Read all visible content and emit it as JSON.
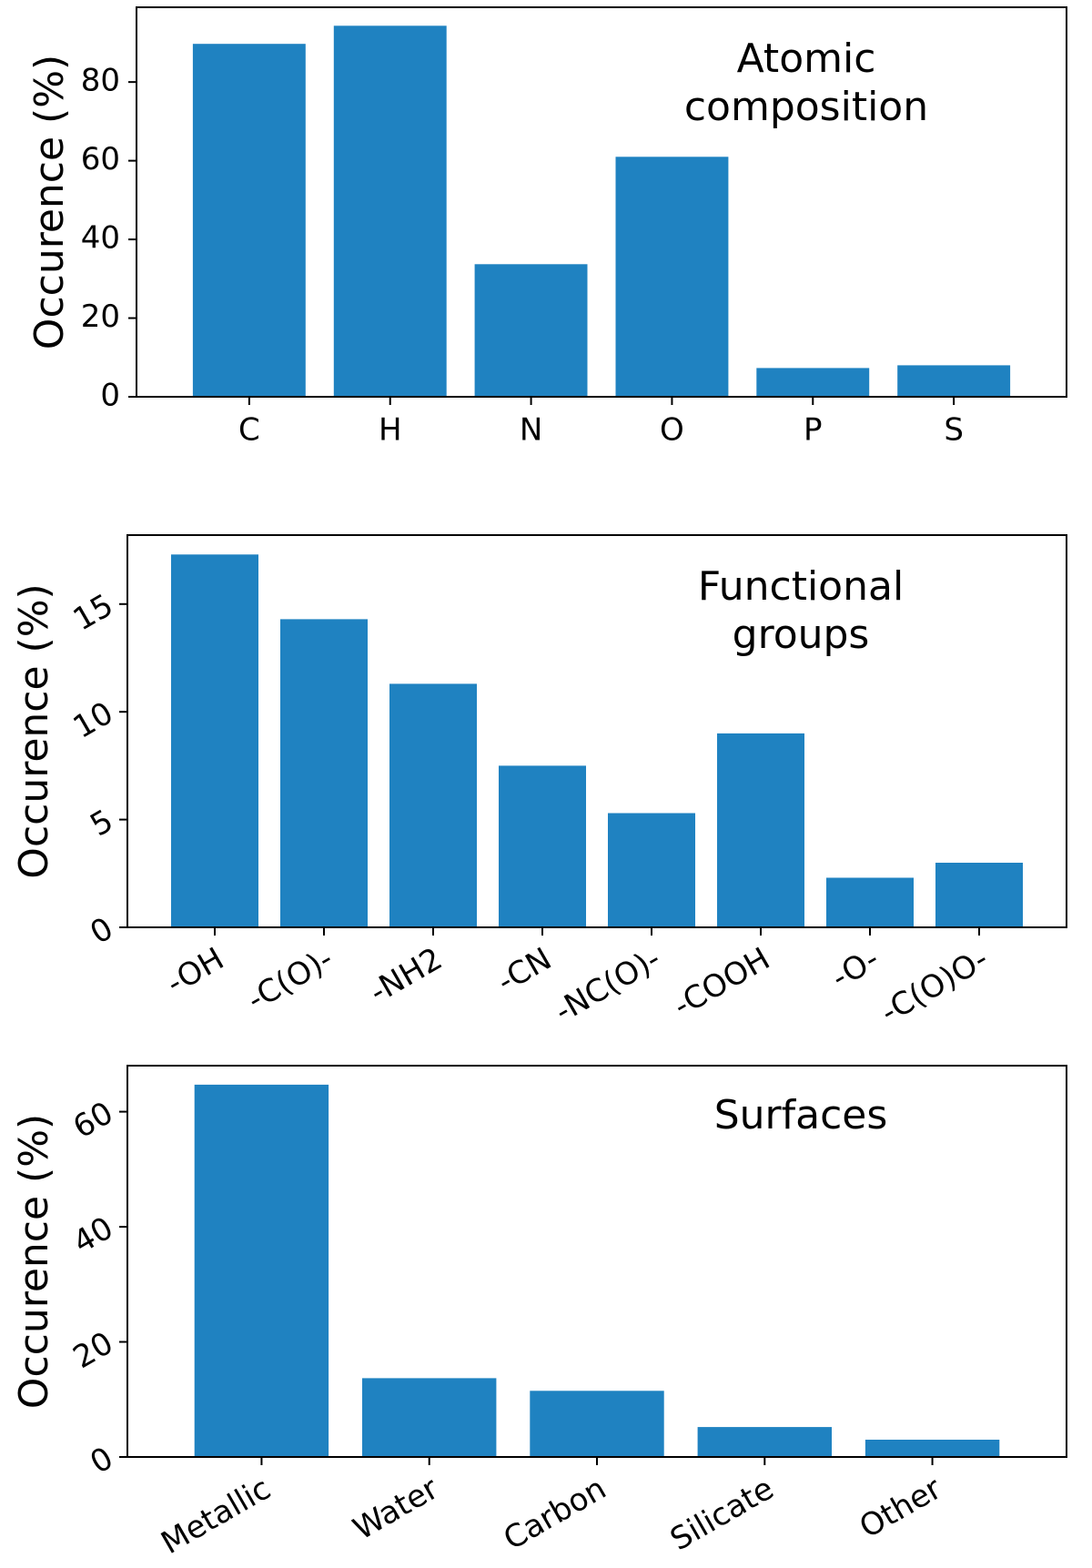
{
  "colors": {
    "bar": "#1f82c1",
    "axis": "#000000",
    "background": "#ffffff"
  },
  "chart_data": [
    {
      "type": "bar",
      "title": [
        "Atomic",
        "composition"
      ],
      "ylabel": "Occurence (%)",
      "xlabel": "",
      "categories": [
        "C",
        "H",
        "N",
        "O",
        "P",
        "S"
      ],
      "values": [
        89.7,
        94.3,
        33.7,
        61.0,
        7.3,
        8.0
      ],
      "ylim": [
        0,
        99
      ],
      "yticks": [
        0,
        20,
        40,
        60,
        80
      ],
      "ytick_rotation": 0,
      "xtick_rotation": 0,
      "grid": false,
      "legend": "none"
    },
    {
      "type": "bar",
      "title": [
        "Functional",
        "groups"
      ],
      "ylabel": "Occurence (%)",
      "xlabel": "",
      "categories": [
        "-OH",
        "-C(O)-",
        "-NH2",
        "-CN",
        "-NC(O)-",
        "-COOH",
        "-O-",
        "-C(O)O-"
      ],
      "values": [
        17.3,
        14.3,
        11.3,
        7.5,
        5.3,
        9.0,
        2.3,
        3.0
      ],
      "ylim": [
        0,
        18.2
      ],
      "yticks": [
        0,
        5,
        10,
        15
      ],
      "ytick_rotation": -30,
      "xtick_rotation": -30,
      "grid": false,
      "legend": "none"
    },
    {
      "type": "bar",
      "title": [
        "Surfaces"
      ],
      "ylabel": "Occurence (%)",
      "xlabel": "",
      "categories": [
        "Metallic",
        "Water",
        "Carbon",
        "Silicate",
        "Other"
      ],
      "values": [
        64.7,
        13.7,
        11.5,
        5.2,
        3.0
      ],
      "ylim": [
        0,
        68
      ],
      "yticks": [
        0,
        20,
        40,
        60
      ],
      "ytick_rotation": -30,
      "xtick_rotation": -30,
      "grid": false,
      "legend": "none"
    }
  ]
}
